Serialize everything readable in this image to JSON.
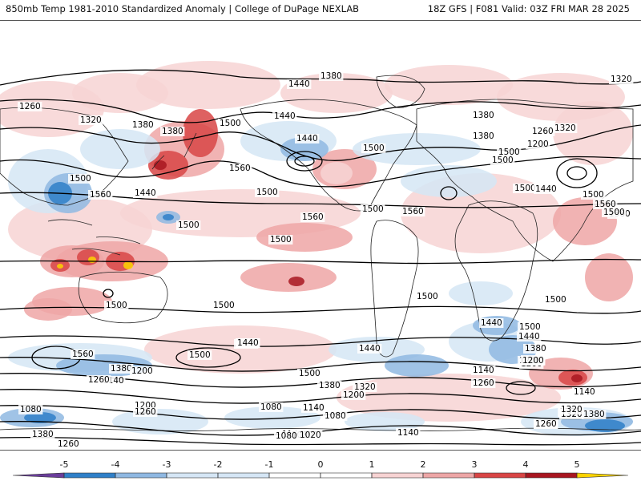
{
  "header": {
    "left": "850mb Temp 1981-2010 Standardized Anomaly | College of DuPage NEXLAB",
    "right": "18Z GFS | F081 Valid: 03Z FRI MAR 28 2025"
  },
  "colors": {
    "neg5": "#6a3d9a",
    "neg4": "#1f3f7a",
    "neg3": "#2f7fc8",
    "neg2": "#8fb8e2",
    "neg1": "#d5e6f5",
    "zero": "#ffffff",
    "pos1": "#f7d3d3",
    "pos2": "#eea6a6",
    "pos3": "#d84545",
    "pos4": "#a81620",
    "pos5": "#fbd300",
    "land_outline": "#222222",
    "contour": "#000000"
  },
  "colorbar": {
    "ticks": [
      "-5",
      "-4",
      "-3",
      "-2",
      "-1",
      "0",
      "1",
      "2",
      "3",
      "4",
      "5"
    ]
  },
  "contour_labels": [
    "1380",
    "1440",
    "1320",
    "1260",
    "1320",
    "1380",
    "1380",
    "1500",
    "1440",
    "1380",
    "1560",
    "1500",
    "1560",
    "1440",
    "1500",
    "1500",
    "1560",
    "1500",
    "1500",
    "1500",
    "1560",
    "1500",
    "1440",
    "1380",
    "1500",
    "1500",
    "1560",
    "1320",
    "1260",
    "1200",
    "1320",
    "1440",
    "1500",
    "1500",
    "1500",
    "1440",
    "1380",
    "1320",
    "1200",
    "1140",
    "1560",
    "1380",
    "1200",
    "1140",
    "1260",
    "1080",
    "1200",
    "1260",
    "1080",
    "1140",
    "1080",
    "1380",
    "1260",
    "1140",
    "1080",
    "1020",
    "1080",
    "1140",
    "1500",
    "1440",
    "1380",
    "1320",
    "1260",
    "1200",
    "1140",
    "1380",
    "1320",
    "1440",
    "1500",
    "1560",
    "1500",
    "1500",
    "1500",
    "1500",
    "1380",
    "1260",
    "1320",
    "1200",
    "1440",
    "1500",
    "1140",
    "1200",
    "1320",
    "1380",
    "1260",
    "1440"
  ]
}
